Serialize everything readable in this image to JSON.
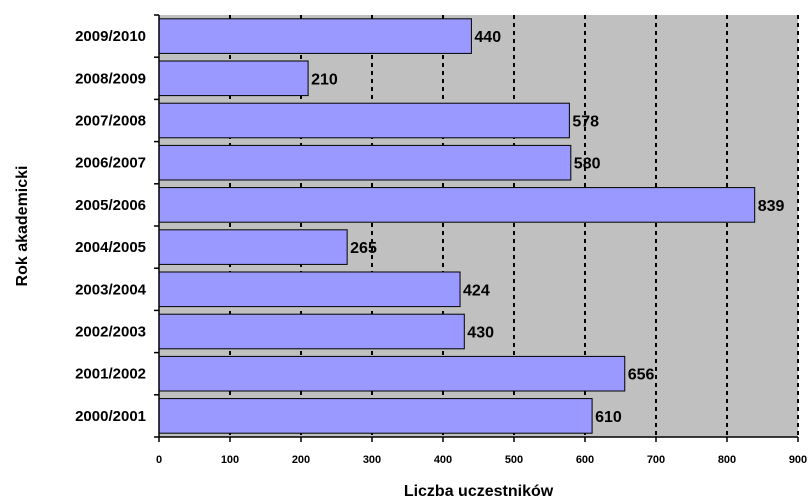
{
  "chart_data": {
    "type": "bar",
    "orientation": "horizontal",
    "categories": [
      "2009/2010",
      "2008/2009",
      "2007/2008",
      "2006/2007",
      "2005/2006",
      "2004/2005",
      "2003/2004",
      "2002/2003",
      "2001/2002",
      "2000/2001"
    ],
    "values": [
      440,
      210,
      578,
      580,
      839,
      265,
      424,
      430,
      656,
      610
    ],
    "data_labels": [
      "440",
      "210",
      "578",
      "580",
      "839",
      "265",
      "424",
      "430",
      "656",
      "610"
    ],
    "xlabel": "Liczba uczestników",
    "ylabel": "Rok akademicki",
    "xlim": [
      0,
      900
    ],
    "x_ticks": [
      0,
      100,
      200,
      300,
      400,
      500,
      600,
      700,
      800,
      900
    ],
    "x_tick_labels": [
      "0",
      "100",
      "200",
      "300",
      "400",
      "500",
      "600",
      "700",
      "800",
      "900"
    ],
    "grid": "vertical dashed",
    "colors": {
      "bar_fill": "#9999ff",
      "bar_stroke": "#000000",
      "plot_background": "#c0c0c0",
      "gridline": "#000000"
    }
  }
}
